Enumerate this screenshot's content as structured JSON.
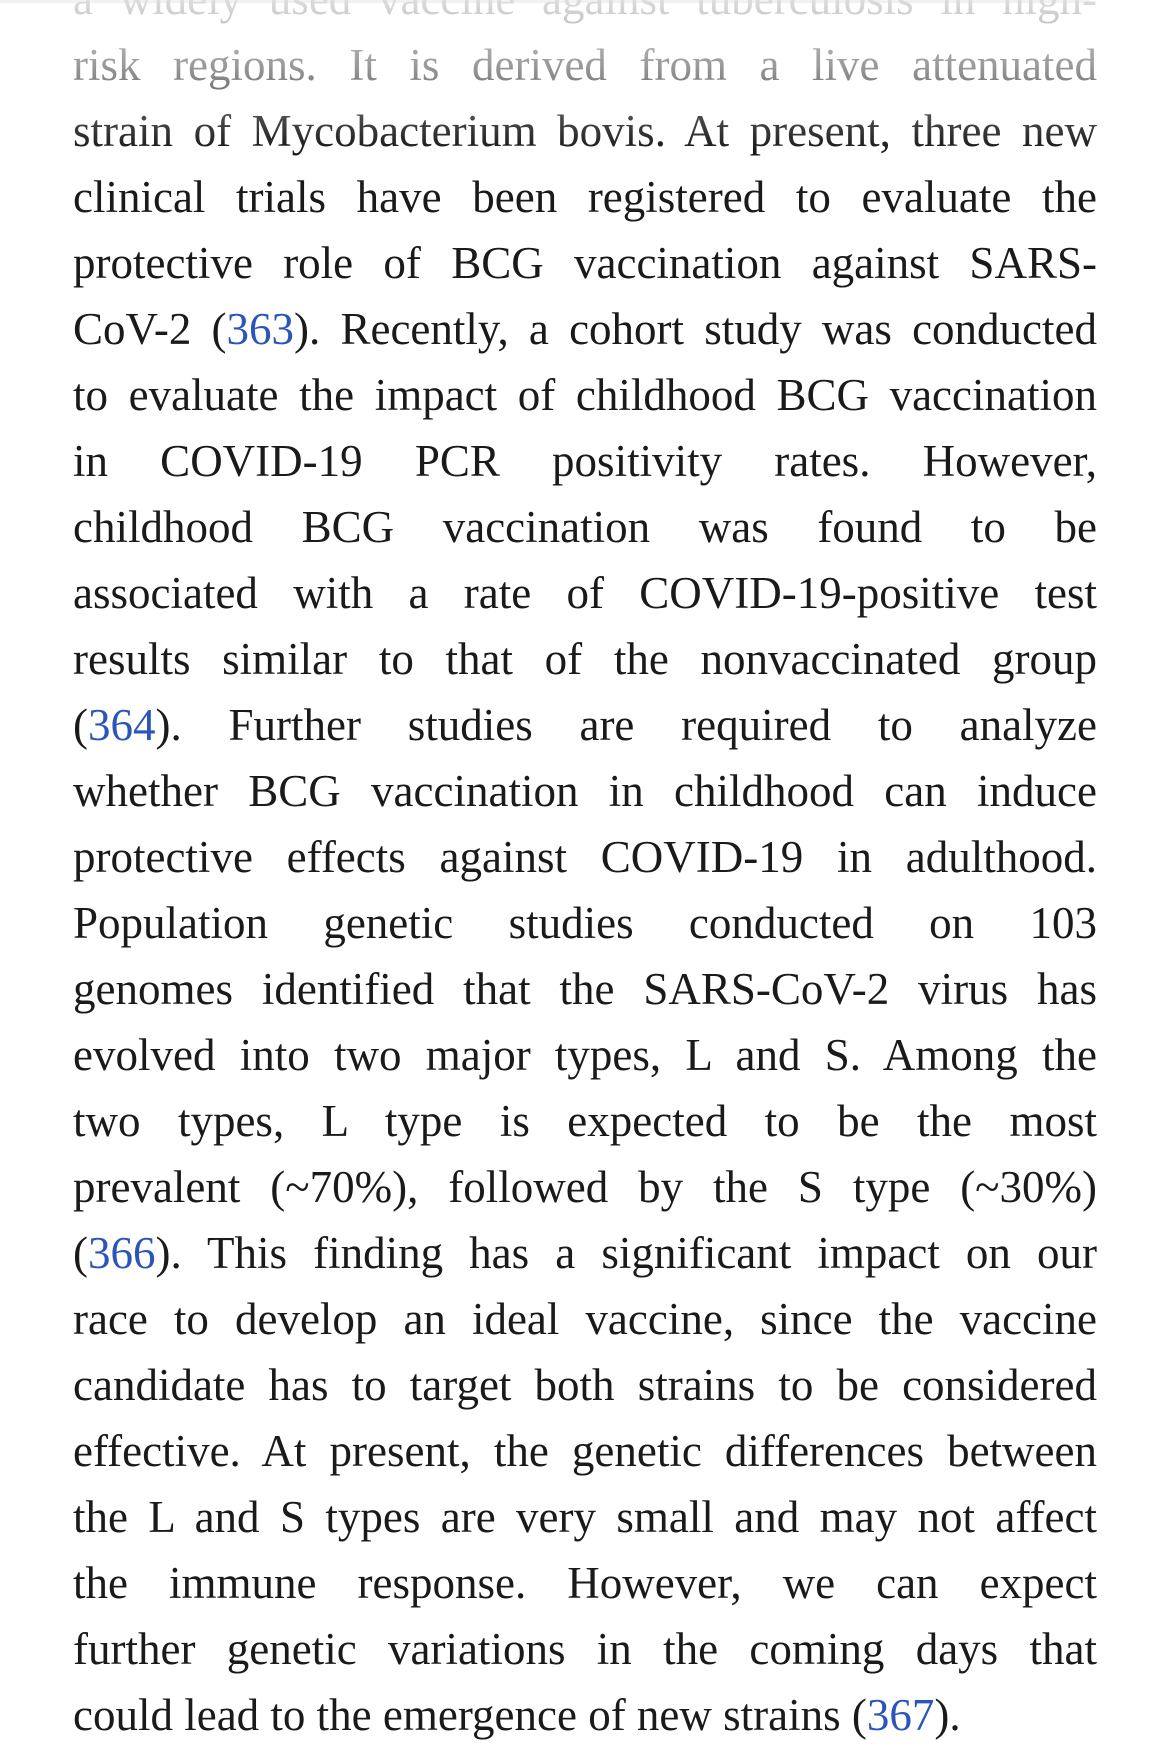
{
  "lines": [
    [
      {
        "text": "a widely used vaccine against tuberculosis in high-"
      }
    ],
    [
      {
        "text": "risk regions. It is derived from a live attenuated"
      }
    ],
    [
      {
        "text": "strain of Mycobacterium bovis. At present, three new"
      }
    ],
    [
      {
        "text": "clinical trials have been registered to evaluate the"
      }
    ],
    [
      {
        "text": "protective role of BCG vaccination against SARS-"
      }
    ],
    [
      {
        "text": "CoV-2 ("
      },
      {
        "ref": "363"
      },
      {
        "text": "). Recently, a cohort study was conducted"
      }
    ],
    [
      {
        "text": "to evaluate the impact of childhood BCG vaccination"
      }
    ],
    [
      {
        "text": "in COVID-19 PCR positivity rates. However,"
      }
    ],
    [
      {
        "text": "childhood BCG vaccination was found to be"
      }
    ],
    [
      {
        "text": "associated with a rate of COVID-19-positive test"
      }
    ],
    [
      {
        "text": "results similar to that of the nonvaccinated group"
      }
    ],
    [
      {
        "text": "("
      },
      {
        "ref": "364"
      },
      {
        "text": "). Further studies are required to analyze"
      }
    ],
    [
      {
        "text": "whether BCG vaccination in childhood can induce"
      }
    ],
    [
      {
        "text": "protective effects against COVID-19 in adulthood."
      }
    ],
    [
      {
        "text": "Population genetic studies conducted on 103"
      }
    ],
    [
      {
        "text": "genomes identified that the SARS-CoV-2 virus has"
      }
    ],
    [
      {
        "text": "evolved into two major types, L and S. Among the"
      }
    ],
    [
      {
        "text": "two types, L type is expected to be the most"
      }
    ],
    [
      {
        "text": "prevalent (~70%), followed by the S type (~30%)"
      }
    ],
    [
      {
        "text": "("
      },
      {
        "ref": "366"
      },
      {
        "text": "). This finding has a significant impact on our"
      }
    ],
    [
      {
        "text": "race to develop an ideal vaccine, since the vaccine"
      }
    ],
    [
      {
        "text": "candidate has to target both strains to be considered"
      }
    ],
    [
      {
        "text": "effective. At present, the genetic differences between"
      }
    ],
    [
      {
        "text": "the L and S types are very small and may not affect"
      }
    ],
    [
      {
        "text": "the immune response. However, we can expect"
      }
    ],
    [
      {
        "text": "further genetic variations in the coming days that"
      }
    ],
    [
      {
        "text": "could lead to the emergence of new strains ("
      },
      {
        "ref": "367"
      },
      {
        "text": ")."
      }
    ]
  ]
}
